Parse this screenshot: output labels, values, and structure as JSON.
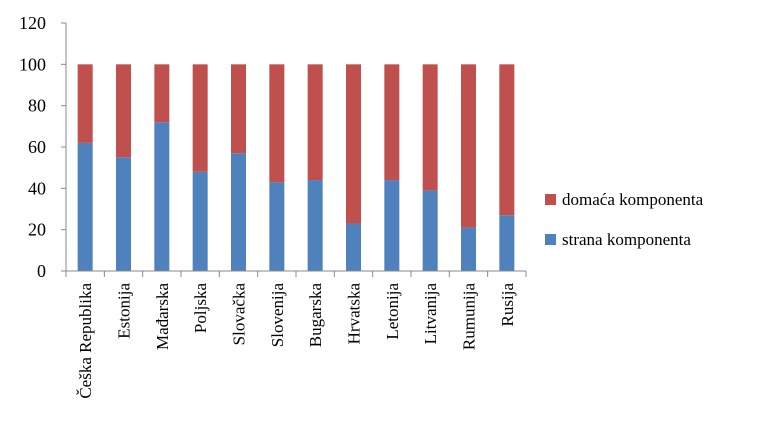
{
  "chart_data": {
    "type": "bar",
    "stacked": true,
    "categories": [
      "Češka Republika",
      "Estonija",
      "Mađarska",
      "Poljska",
      "Slovačka",
      "Slovenija",
      "Bugarska",
      "Hrvatska",
      "Letonija",
      "Litvanija",
      "Rumunija",
      "Rusija"
    ],
    "series": [
      {
        "name": "strana komponenta",
        "color": "#4f81bd",
        "values": [
          62,
          55,
          72,
          48,
          57,
          43,
          44,
          23,
          44,
          39,
          21,
          27
        ]
      },
      {
        "name": "domaća komponenta",
        "color": "#c0504d",
        "values": [
          38,
          45,
          28,
          52,
          43,
          57,
          56,
          77,
          56,
          61,
          79,
          73
        ]
      }
    ],
    "ylim": [
      0,
      120
    ],
    "yticks": [
      "0",
      "20",
      "40",
      "60",
      "80",
      "100",
      "120"
    ],
    "legend_position": "right",
    "legend": [
      "domaća komponenta",
      "strana komponenta"
    ],
    "grid": false
  }
}
